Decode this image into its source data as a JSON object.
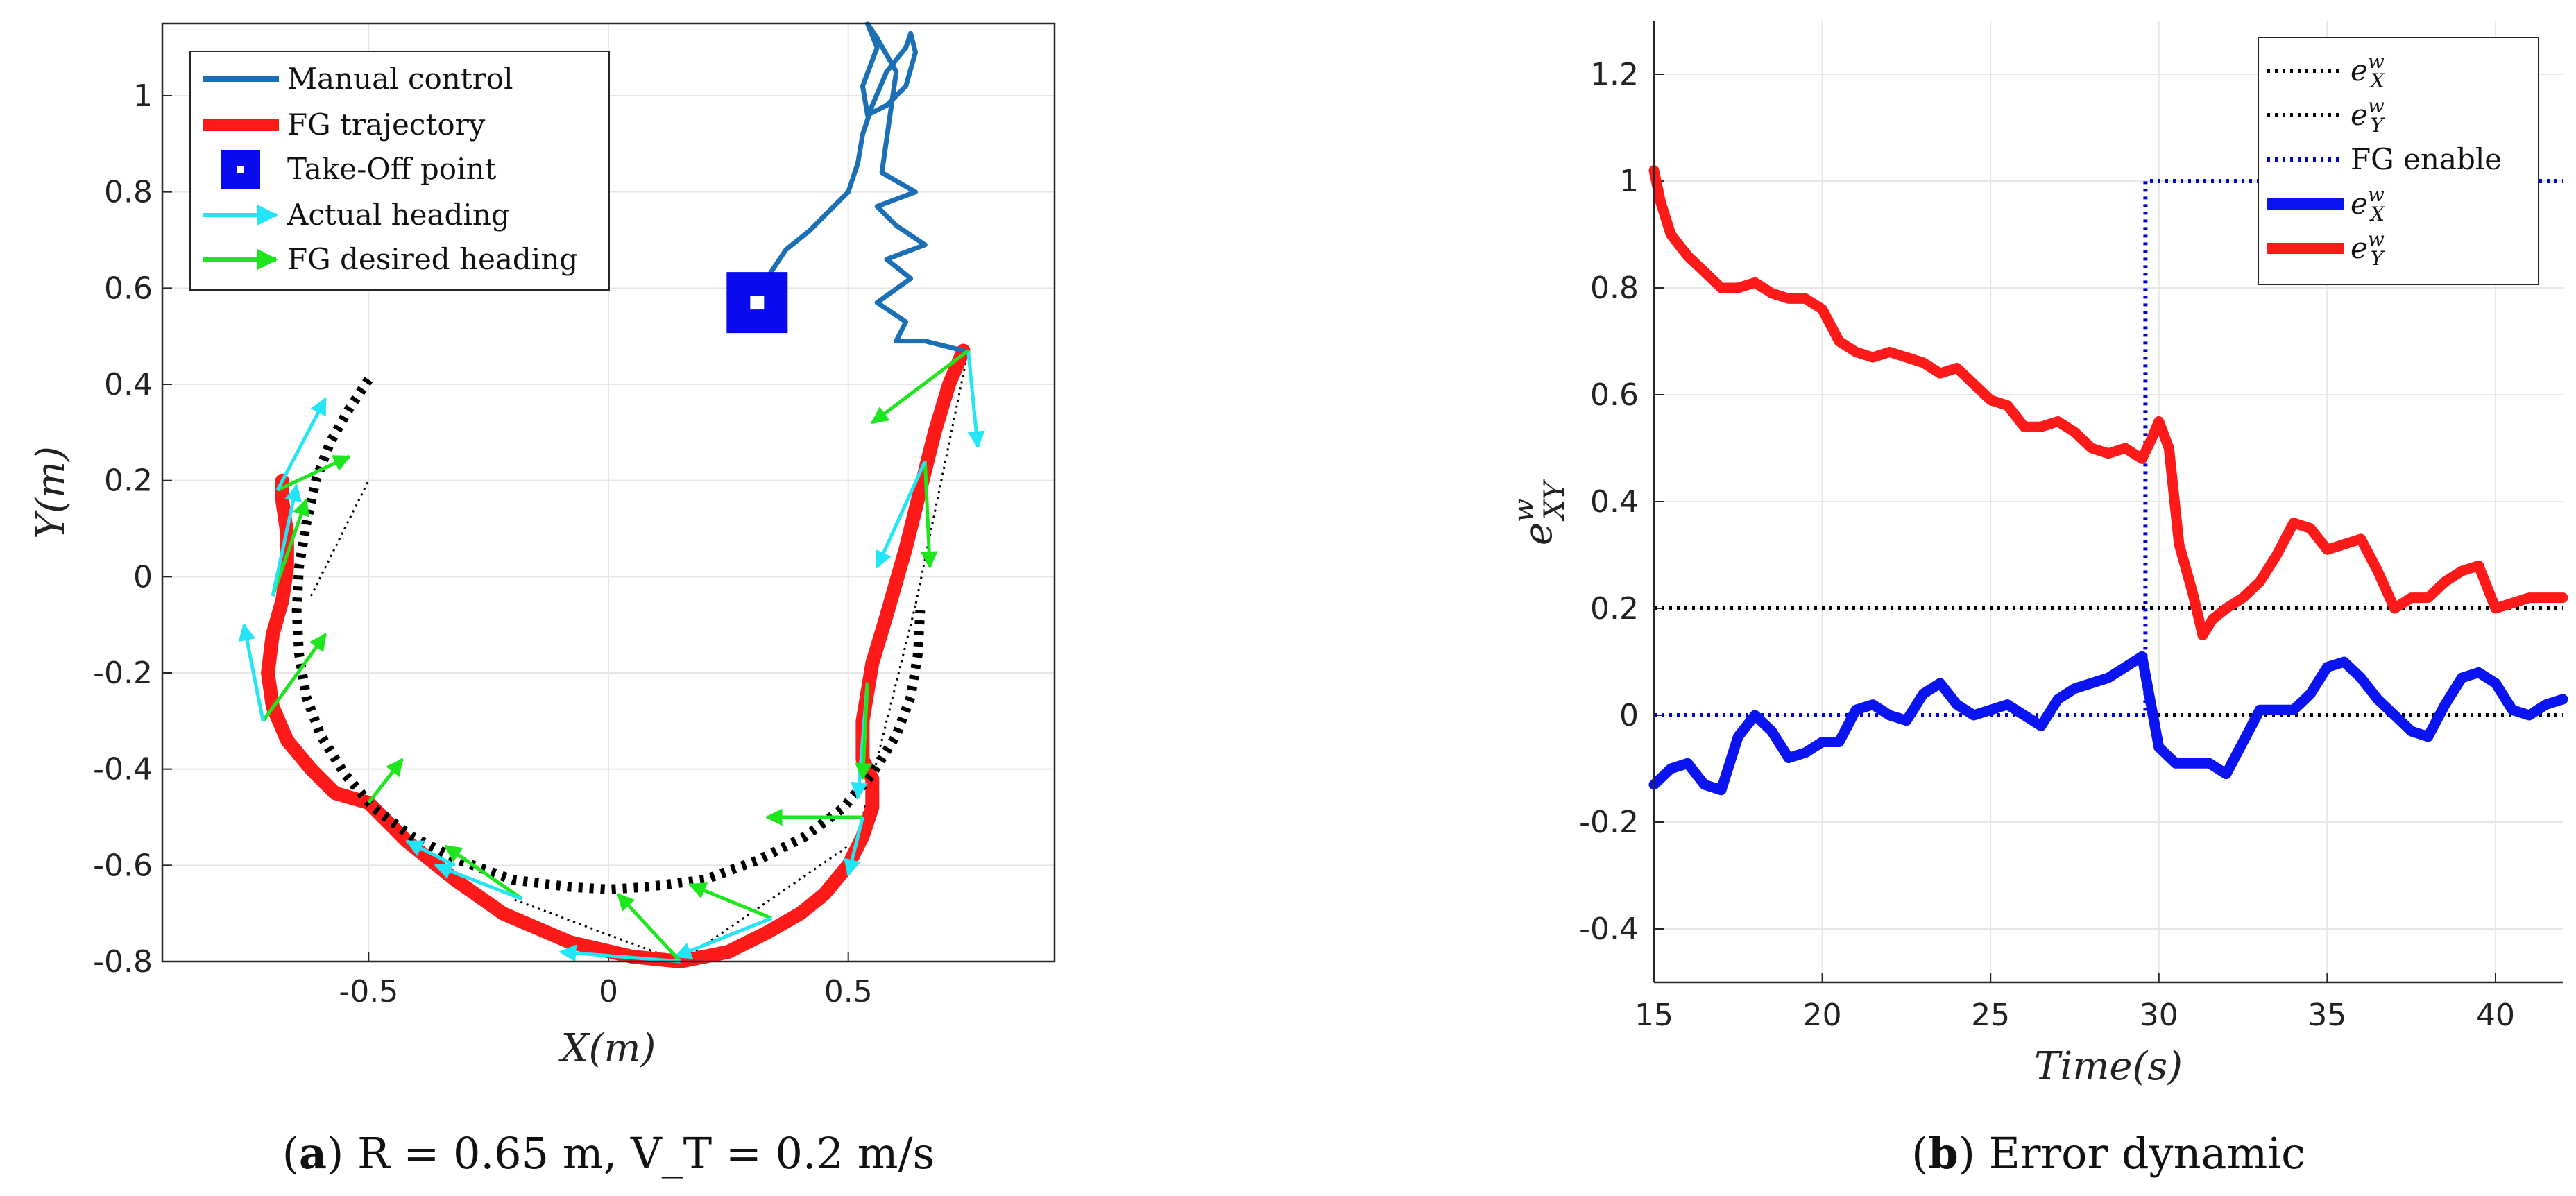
{
  "chart_data": [
    {
      "type": "line",
      "panel": "a",
      "caption": {
        "label": "a",
        "text": "R = 0.65 m,     V_T = 0.2 m/s"
      },
      "xlabel": "X(m)",
      "ylabel": "Y(m)",
      "xlim": [
        -0.93,
        0.93
      ],
      "ylim": [
        -0.8,
        1.15
      ],
      "xticks": [
        -0.5,
        0,
        0.5
      ],
      "xtick_labels": [
        "-0.5",
        "0",
        "0.5"
      ],
      "yticks": [
        -0.8,
        -0.6,
        -0.4,
        -0.2,
        0,
        0.2,
        0.4,
        0.6,
        0.8,
        1
      ],
      "ytick_labels": [
        "-0.8",
        "-0.6",
        "-0.4",
        "-0.2",
        "0",
        "0.2",
        "0.4",
        "0.6",
        "0.8",
        "1"
      ],
      "grid": true,
      "legend": {
        "position": "top-left",
        "entries": [
          {
            "label": "Manual control",
            "color": "#1a6fb5"
          },
          {
            "label": "FG trajectory",
            "color": "#ff1a1a"
          },
          {
            "label": "Take-Off point",
            "color": "#0a0aee"
          },
          {
            "label": "Actual heading",
            "color": "#23e5f5"
          },
          {
            "label": "FG desired heading",
            "color": "#1ee61e"
          }
        ]
      },
      "series": [
        {
          "name": "Manual control",
          "color": "#1a6fb5",
          "x": [
            0.31,
            0.33,
            0.37,
            0.42,
            0.46,
            0.5,
            0.52,
            0.53,
            0.55,
            0.58,
            0.62,
            0.63,
            0.64,
            0.62,
            0.58,
            0.54,
            0.53,
            0.56,
            0.54,
            0.56,
            0.6,
            0.57,
            0.64,
            0.56,
            0.6,
            0.66,
            0.58,
            0.63,
            0.56,
            0.62,
            0.6,
            0.66,
            0.7,
            0.74
          ],
          "y": [
            0.57,
            0.62,
            0.68,
            0.72,
            0.76,
            0.8,
            0.86,
            0.92,
            0.98,
            1.05,
            1.1,
            1.13,
            1.09,
            1.02,
            0.98,
            0.96,
            1.02,
            1.1,
            1.15,
            1.12,
            1.05,
            0.84,
            0.8,
            0.77,
            0.73,
            0.69,
            0.66,
            0.62,
            0.57,
            0.53,
            0.49,
            0.49,
            0.48,
            0.47
          ]
        },
        {
          "name": "FG trajectory",
          "color": "#ff1a1a",
          "x": [
            0.74,
            0.71,
            0.68,
            0.65,
            0.62,
            0.58,
            0.55,
            0.53,
            0.53,
            0.55,
            0.55,
            0.53,
            0.5,
            0.45,
            0.4,
            0.33,
            0.25,
            0.15,
            0.05,
            -0.08,
            -0.22,
            -0.32,
            -0.42,
            -0.5,
            -0.57,
            -0.62,
            -0.67,
            -0.7,
            -0.71,
            -0.7,
            -0.68,
            -0.67,
            -0.67,
            -0.68,
            -0.68
          ],
          "y": [
            0.47,
            0.4,
            0.3,
            0.18,
            0.06,
            -0.08,
            -0.18,
            -0.3,
            -0.38,
            -0.42,
            -0.48,
            -0.54,
            -0.6,
            -0.66,
            -0.7,
            -0.74,
            -0.78,
            -0.8,
            -0.79,
            -0.76,
            -0.7,
            -0.63,
            -0.55,
            -0.47,
            -0.45,
            -0.4,
            -0.34,
            -0.27,
            -0.2,
            -0.12,
            -0.05,
            0.02,
            0.09,
            0.16,
            0.2
          ]
        },
        {
          "name": "Reference circle",
          "color": "#000000",
          "style": "dotted-thick",
          "x": [
            -0.5,
            -0.54,
            -0.58,
            -0.61,
            -0.63,
            -0.645,
            -0.65,
            -0.645,
            -0.63,
            -0.6,
            -0.55,
            -0.49,
            -0.41,
            -0.31,
            -0.2,
            -0.08,
            0.0,
            0.08,
            0.2,
            0.31,
            0.41,
            0.49,
            0.55,
            0.6,
            0.63,
            0.645,
            0.65
          ],
          "y": [
            0.41,
            0.35,
            0.28,
            0.2,
            0.11,
            0.02,
            -0.07,
            -0.16,
            -0.25,
            -0.33,
            -0.41,
            -0.48,
            -0.54,
            -0.59,
            -0.63,
            -0.645,
            -0.65,
            -0.645,
            -0.63,
            -0.59,
            -0.54,
            -0.48,
            -0.41,
            -0.33,
            -0.25,
            -0.16,
            -0.07
          ]
        },
        {
          "name": "Target links",
          "color": "#000000",
          "style": "dotted-thin",
          "x": [
            0.75,
            0.64,
            0.64,
            0.53,
            0.15,
            0.5,
            0.15,
            -0.2,
            -0.72,
            -0.72,
            -0.62,
            -0.5
          ],
          "y": [
            0.47,
            -0.06,
            -0.06,
            -0.5,
            -0.8,
            -0.56,
            -0.8,
            -0.67,
            -0.3,
            -0.3,
            -0.04,
            0.2
          ]
        }
      ],
      "takeoff_point": {
        "x": 0.31,
        "y": 0.57
      },
      "heading_arrows": [
        {
          "series": "Actual heading",
          "color": "#23e5f5",
          "x": 0.75,
          "y": 0.47,
          "dx": 0.02,
          "dy": -0.2
        },
        {
          "series": "FG desired heading",
          "color": "#1ee61e",
          "x": 0.75,
          "y": 0.47,
          "dx": -0.2,
          "dy": -0.15
        },
        {
          "series": "FG desired heading",
          "color": "#1ee61e",
          "x": 0.66,
          "y": 0.24,
          "dx": 0.01,
          "dy": -0.22
        },
        {
          "series": "Actual heading",
          "color": "#23e5f5",
          "x": 0.66,
          "y": 0.24,
          "dx": -0.1,
          "dy": -0.22
        },
        {
          "series": "Actual heading",
          "color": "#23e5f5",
          "x": 0.54,
          "y": -0.22,
          "dx": -0.02,
          "dy": -0.24
        },
        {
          "series": "FG desired heading",
          "color": "#1ee61e",
          "x": 0.54,
          "y": -0.22,
          "dx": -0.01,
          "dy": -0.2
        },
        {
          "series": "FG desired heading",
          "color": "#1ee61e",
          "x": 0.53,
          "y": -0.5,
          "dx": -0.2,
          "dy": 0.0
        },
        {
          "series": "Actual heading",
          "color": "#23e5f5",
          "x": 0.53,
          "y": -0.5,
          "dx": -0.03,
          "dy": -0.12
        },
        {
          "series": "FG desired heading",
          "color": "#1ee61e",
          "x": 0.34,
          "y": -0.71,
          "dx": -0.17,
          "dy": 0.07
        },
        {
          "series": "Actual heading",
          "color": "#23e5f5",
          "x": 0.34,
          "y": -0.71,
          "dx": -0.2,
          "dy": -0.08
        },
        {
          "series": "FG desired heading",
          "color": "#1ee61e",
          "x": 0.15,
          "y": -0.8,
          "dx": -0.13,
          "dy": 0.14
        },
        {
          "series": "Actual heading",
          "color": "#23e5f5",
          "x": 0.15,
          "y": -0.8,
          "dx": -0.25,
          "dy": 0.02
        },
        {
          "series": "FG desired heading",
          "color": "#1ee61e",
          "x": -0.18,
          "y": -0.67,
          "dx": -0.16,
          "dy": 0.11
        },
        {
          "series": "Actual heading",
          "color": "#23e5f5",
          "x": -0.18,
          "y": -0.67,
          "dx": -0.18,
          "dy": 0.07
        },
        {
          "series": "FG desired heading",
          "color": "#1ee61e",
          "x": -0.5,
          "y": -0.47,
          "dx": 0.07,
          "dy": 0.09
        },
        {
          "series": "Actual heading",
          "color": "#23e5f5",
          "x": -0.32,
          "y": -0.6,
          "dx": -0.1,
          "dy": 0.05
        },
        {
          "series": "FG desired heading",
          "color": "#1ee61e",
          "x": -0.72,
          "y": -0.3,
          "dx": 0.13,
          "dy": 0.18
        },
        {
          "series": "Actual heading",
          "color": "#23e5f5",
          "x": -0.72,
          "y": -0.3,
          "dx": -0.04,
          "dy": 0.2
        },
        {
          "series": "FG desired heading",
          "color": "#1ee61e",
          "x": -0.7,
          "y": -0.04,
          "dx": 0.07,
          "dy": 0.2
        },
        {
          "series": "Actual heading",
          "color": "#23e5f5",
          "x": -0.7,
          "y": -0.04,
          "dx": 0.05,
          "dy": 0.23
        },
        {
          "series": "FG desired heading",
          "color": "#1ee61e",
          "x": -0.69,
          "y": 0.18,
          "dx": 0.15,
          "dy": 0.07
        },
        {
          "series": "Actual heading",
          "color": "#23e5f5",
          "x": -0.69,
          "y": 0.18,
          "dx": 0.1,
          "dy": 0.19
        }
      ]
    },
    {
      "type": "line",
      "panel": "b",
      "caption": {
        "label": "b",
        "text": "Error dynamic"
      },
      "xlabel": "Time(s)",
      "ylabel": "e^w_XY",
      "xlim": [
        15,
        42
      ],
      "ylim": [
        -0.5,
        1.3
      ],
      "xticks": [
        15,
        20,
        25,
        30,
        35,
        40
      ],
      "xtick_labels": [
        "15",
        "20",
        "25",
        "30",
        "35",
        "40"
      ],
      "yticks": [
        -0.4,
        -0.2,
        0,
        0.2,
        0.4,
        0.6,
        0.8,
        1,
        1.2
      ],
      "ytick_labels": [
        "-0.4",
        "-0.2",
        "0",
        "0.2",
        "0.4",
        "0.6",
        "0.8",
        "1",
        "1.2"
      ],
      "grid": true,
      "legend": {
        "position": "top-right",
        "entries": [
          {
            "base": "e",
            "sup": "w",
            "sub": "X",
            "color": "#000000",
            "style": "dotted"
          },
          {
            "base": "e",
            "sup": "w",
            "sub": "Y",
            "color": "#000000",
            "style": "dotted"
          },
          {
            "label": "FG enable",
            "color": "#0000cc",
            "style": "dotted"
          },
          {
            "base": "e",
            "sup": "w",
            "sub": "X",
            "color": "#0a14f0",
            "style": "solid"
          },
          {
            "base": "e",
            "sup": "w",
            "sub": "Y",
            "color": "#ff1a1a",
            "style": "solid"
          }
        ]
      },
      "series": [
        {
          "name": "e^w_X target",
          "color": "#000000",
          "style": "dotted",
          "x": [
            15,
            42
          ],
          "y": [
            0,
            0
          ]
        },
        {
          "name": "e^w_Y target",
          "color": "#000000",
          "style": "dotted",
          "x": [
            15,
            42
          ],
          "y": [
            0.2,
            0.2
          ]
        },
        {
          "name": "FG enable",
          "color": "#0000cc",
          "style": "dotted",
          "x": [
            15,
            29.6,
            29.6,
            42
          ],
          "y": [
            0,
            0,
            1,
            1
          ]
        },
        {
          "name": "e^w_X",
          "color": "#0a14f0",
          "style": "solid",
          "x": [
            15,
            15.5,
            16,
            16.5,
            17,
            17.5,
            18,
            18.5,
            19,
            19.5,
            20,
            20.5,
            21,
            21.5,
            22,
            22.5,
            23,
            23.5,
            24,
            24.5,
            25,
            25.5,
            26,
            26.5,
            27,
            27.5,
            28,
            28.5,
            29,
            29.5,
            30,
            30.5,
            31,
            31.5,
            32,
            32.5,
            33,
            33.5,
            34,
            34.5,
            35,
            35.5,
            36,
            36.5,
            37,
            37.5,
            38,
            38.5,
            39,
            39.5,
            40,
            40.5,
            41,
            41.5,
            42
          ],
          "y": [
            -0.13,
            -0.1,
            -0.09,
            -0.13,
            -0.14,
            -0.04,
            0.0,
            -0.03,
            -0.08,
            -0.07,
            -0.05,
            -0.05,
            0.01,
            0.02,
            0.0,
            -0.01,
            0.04,
            0.06,
            0.02,
            0.0,
            0.01,
            0.02,
            0.0,
            -0.02,
            0.03,
            0.05,
            0.06,
            0.07,
            0.09,
            0.11,
            -0.06,
            -0.09,
            -0.09,
            -0.09,
            -0.11,
            -0.05,
            0.01,
            0.01,
            0.01,
            0.04,
            0.09,
            0.1,
            0.07,
            0.03,
            0.0,
            -0.03,
            -0.04,
            0.02,
            0.07,
            0.08,
            0.06,
            0.01,
            0.0,
            0.02,
            0.03
          ]
        },
        {
          "name": "e^w_Y",
          "color": "#ff1a1a",
          "style": "solid",
          "x": [
            15,
            15.2,
            15.5,
            16,
            16.5,
            17,
            17.5,
            18,
            18.5,
            19,
            19.5,
            20,
            20.5,
            21,
            21.5,
            22,
            22.5,
            23,
            23.5,
            24,
            24.5,
            25,
            25.5,
            26,
            26.5,
            27,
            27.5,
            28,
            28.5,
            29,
            29.5,
            29.8,
            30,
            30.3,
            30.6,
            31,
            31.3,
            31.6,
            32,
            32.5,
            33,
            33.5,
            34,
            34.5,
            35,
            35.5,
            36,
            36.5,
            37,
            37.5,
            38,
            38.5,
            39,
            39.5,
            40,
            40.5,
            41,
            41.5,
            42
          ],
          "y": [
            1.02,
            0.96,
            0.9,
            0.86,
            0.83,
            0.8,
            0.8,
            0.81,
            0.79,
            0.78,
            0.78,
            0.76,
            0.7,
            0.68,
            0.67,
            0.68,
            0.67,
            0.66,
            0.64,
            0.65,
            0.62,
            0.59,
            0.58,
            0.54,
            0.54,
            0.55,
            0.53,
            0.5,
            0.49,
            0.5,
            0.48,
            0.52,
            0.55,
            0.5,
            0.32,
            0.23,
            0.15,
            0.18,
            0.2,
            0.22,
            0.25,
            0.3,
            0.36,
            0.35,
            0.31,
            0.32,
            0.33,
            0.27,
            0.2,
            0.22,
            0.22,
            0.25,
            0.27,
            0.28,
            0.2,
            0.21,
            0.22,
            0.22,
            0.22
          ]
        }
      ]
    }
  ]
}
